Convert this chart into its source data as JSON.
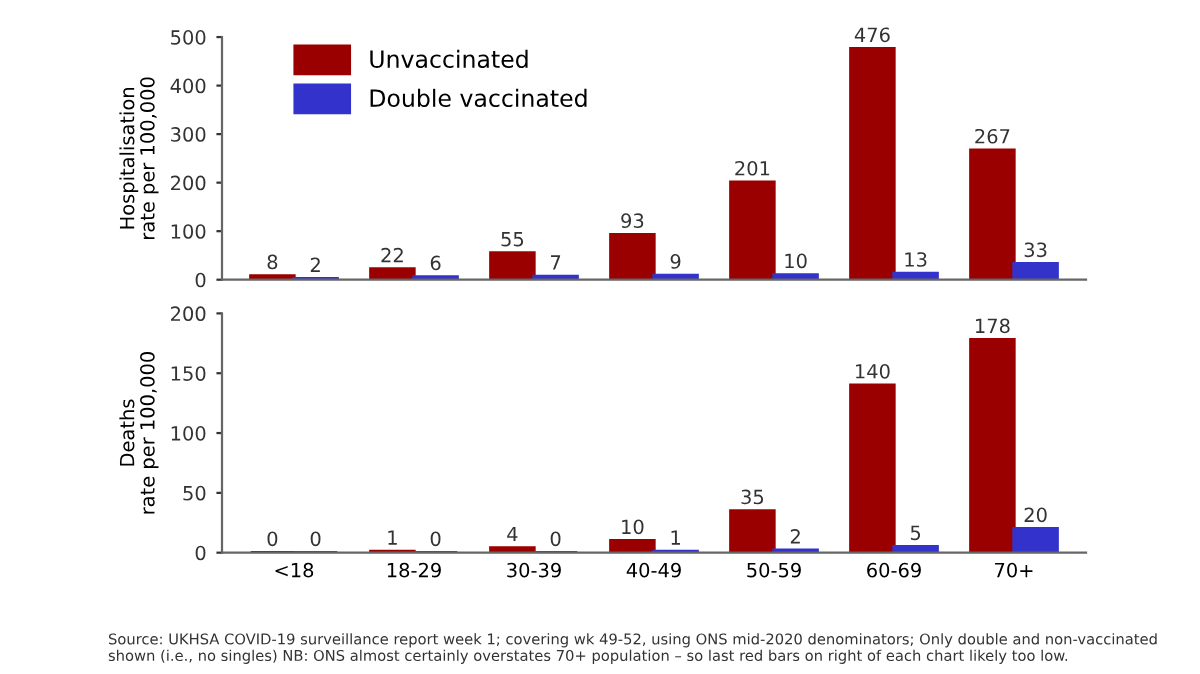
{
  "chart_data": [
    {
      "type": "bar",
      "ylabel": "Hospitalisation\nrate per 100,000",
      "categories": [
        null,
        null,
        null,
        null,
        null,
        null,
        null
      ],
      "ylim": [
        0,
        500
      ],
      "yticks": [
        0,
        100,
        200,
        300,
        400,
        500
      ],
      "tick_labels": "y",
      "legend": "top left",
      "data_labels": true,
      "grid": false,
      "series": [
        {
          "name": "Unvaccinated",
          "color": "#9b0000",
          "values": [
            8,
            22,
            55,
            93,
            201,
            476,
            267
          ]
        },
        {
          "name": "Double vaccinated",
          "color": "#3333cc",
          "values": [
            2,
            6,
            7,
            9,
            10,
            13,
            33
          ]
        }
      ]
    },
    {
      "type": "bar",
      "ylabel": "Deaths\nrate per 100,000",
      "categories": [
        "<18",
        "18-29",
        "30-39",
        "40-49",
        "50-59",
        "60-69",
        "70+"
      ],
      "ylim": [
        0,
        200
      ],
      "yticks": [
        0,
        50,
        100,
        150,
        200
      ],
      "legend": false,
      "data_labels": true,
      "grid": false,
      "series": [
        {
          "color": "#9b0000",
          "values": [
            0,
            1,
            4,
            10,
            35,
            140,
            178
          ]
        },
        {
          "color": "#3333cc",
          "values": [
            0,
            0,
            0,
            1,
            2,
            5,
            20
          ]
        }
      ],
      "annotations": [
        "Source: UKHSA COVID-19 surveillance report week 1; covering wk 49-52, using ONS mid-2020 denominators; Only double and non-vaccinated shown (i.e., no singles) NB: ONS almost certainly overstates 70+ population – so last red bars on right of each chart likely too low."
      ]
    }
  ]
}
